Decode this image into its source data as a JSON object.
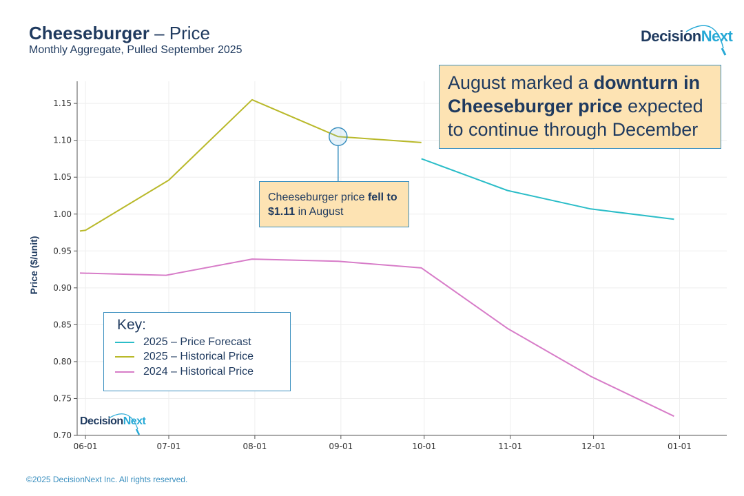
{
  "header": {
    "title_main": "Cheeseburger",
    "title_rest": " – Price",
    "subtitle": "Monthly Aggregate, Pulled September 2025"
  },
  "logo": {
    "part1": "Decision",
    "part2": "Next"
  },
  "callout_main": {
    "t1": "August marked a ",
    "b1": "downturn in Cheeseburger price",
    "t2": " expected to continue through December"
  },
  "callout_point": {
    "t1": "Cheeseburger price ",
    "b1": "fell to $1.11",
    "t2": " in August"
  },
  "legend": {
    "title": "Key:",
    "items": [
      {
        "label": "2025 – Price Forecast",
        "color": "#2bbdc8"
      },
      {
        "label": "2025 – Historical Price",
        "color": "#b9b92a"
      },
      {
        "label": "2024 – Historical Price",
        "color": "#d77cc8"
      }
    ]
  },
  "footer": "©2025 DecisionNext Inc. All rights reserved.",
  "colors": {
    "navy": "#1f3a5f",
    "accent": "#3a8fbf",
    "callout_bg": "#fde3b3"
  },
  "chart_data": {
    "type": "line",
    "ylabel": "Price ($/unit)",
    "xlabel": "",
    "ylim": [
      0.7,
      1.18
    ],
    "xlim": [
      "2025-05-29",
      "2026-01-18"
    ],
    "y_ticks": [
      0.7,
      0.75,
      0.8,
      0.85,
      0.9,
      0.95,
      1.0,
      1.05,
      1.1,
      1.15
    ],
    "y_tick_labels": [
      "0.70",
      "0.75",
      "0.80",
      "0.85",
      "0.90",
      "0.95",
      "1.00",
      "1.05",
      "1.10",
      "1.15"
    ],
    "x_ticks": [
      "2025-06-01",
      "2025-07-01",
      "2025-08-01",
      "2025-09-01",
      "2025-10-01",
      "2025-11-01",
      "2025-12-01",
      "2026-01-01"
    ],
    "x_tick_labels": [
      "06-01",
      "07-01",
      "08-01",
      "09-01",
      "10-01",
      "11-01",
      "12-01",
      "01-01"
    ],
    "grid": true,
    "series": [
      {
        "name": "2025 – Price Forecast",
        "color": "#2bbdc8",
        "points": [
          [
            "2025-09-30",
            1.075
          ],
          [
            "2025-10-31",
            1.032
          ],
          [
            "2025-11-30",
            1.007
          ],
          [
            "2025-12-30",
            0.993
          ]
        ]
      },
      {
        "name": "2025 – Historical Price",
        "color": "#b9b92a",
        "points": [
          [
            "2025-05-30",
            0.977
          ],
          [
            "2025-06-01",
            0.978
          ],
          [
            "2025-07-01",
            1.046
          ],
          [
            "2025-07-31",
            1.155
          ],
          [
            "2025-08-31",
            1.105
          ],
          [
            "2025-09-30",
            1.097
          ]
        ]
      },
      {
        "name": "2024 – Historical Price",
        "color": "#d77cc8",
        "points": [
          [
            "2025-05-30",
            0.92
          ],
          [
            "2025-06-30",
            0.917
          ],
          [
            "2025-07-31",
            0.939
          ],
          [
            "2025-08-31",
            0.936
          ],
          [
            "2025-09-30",
            0.927
          ],
          [
            "2025-10-31",
            0.845
          ],
          [
            "2025-11-30",
            0.78
          ],
          [
            "2025-12-30",
            0.726
          ]
        ]
      }
    ],
    "highlight": {
      "date": "2025-08-31",
      "value": 1.105
    }
  }
}
